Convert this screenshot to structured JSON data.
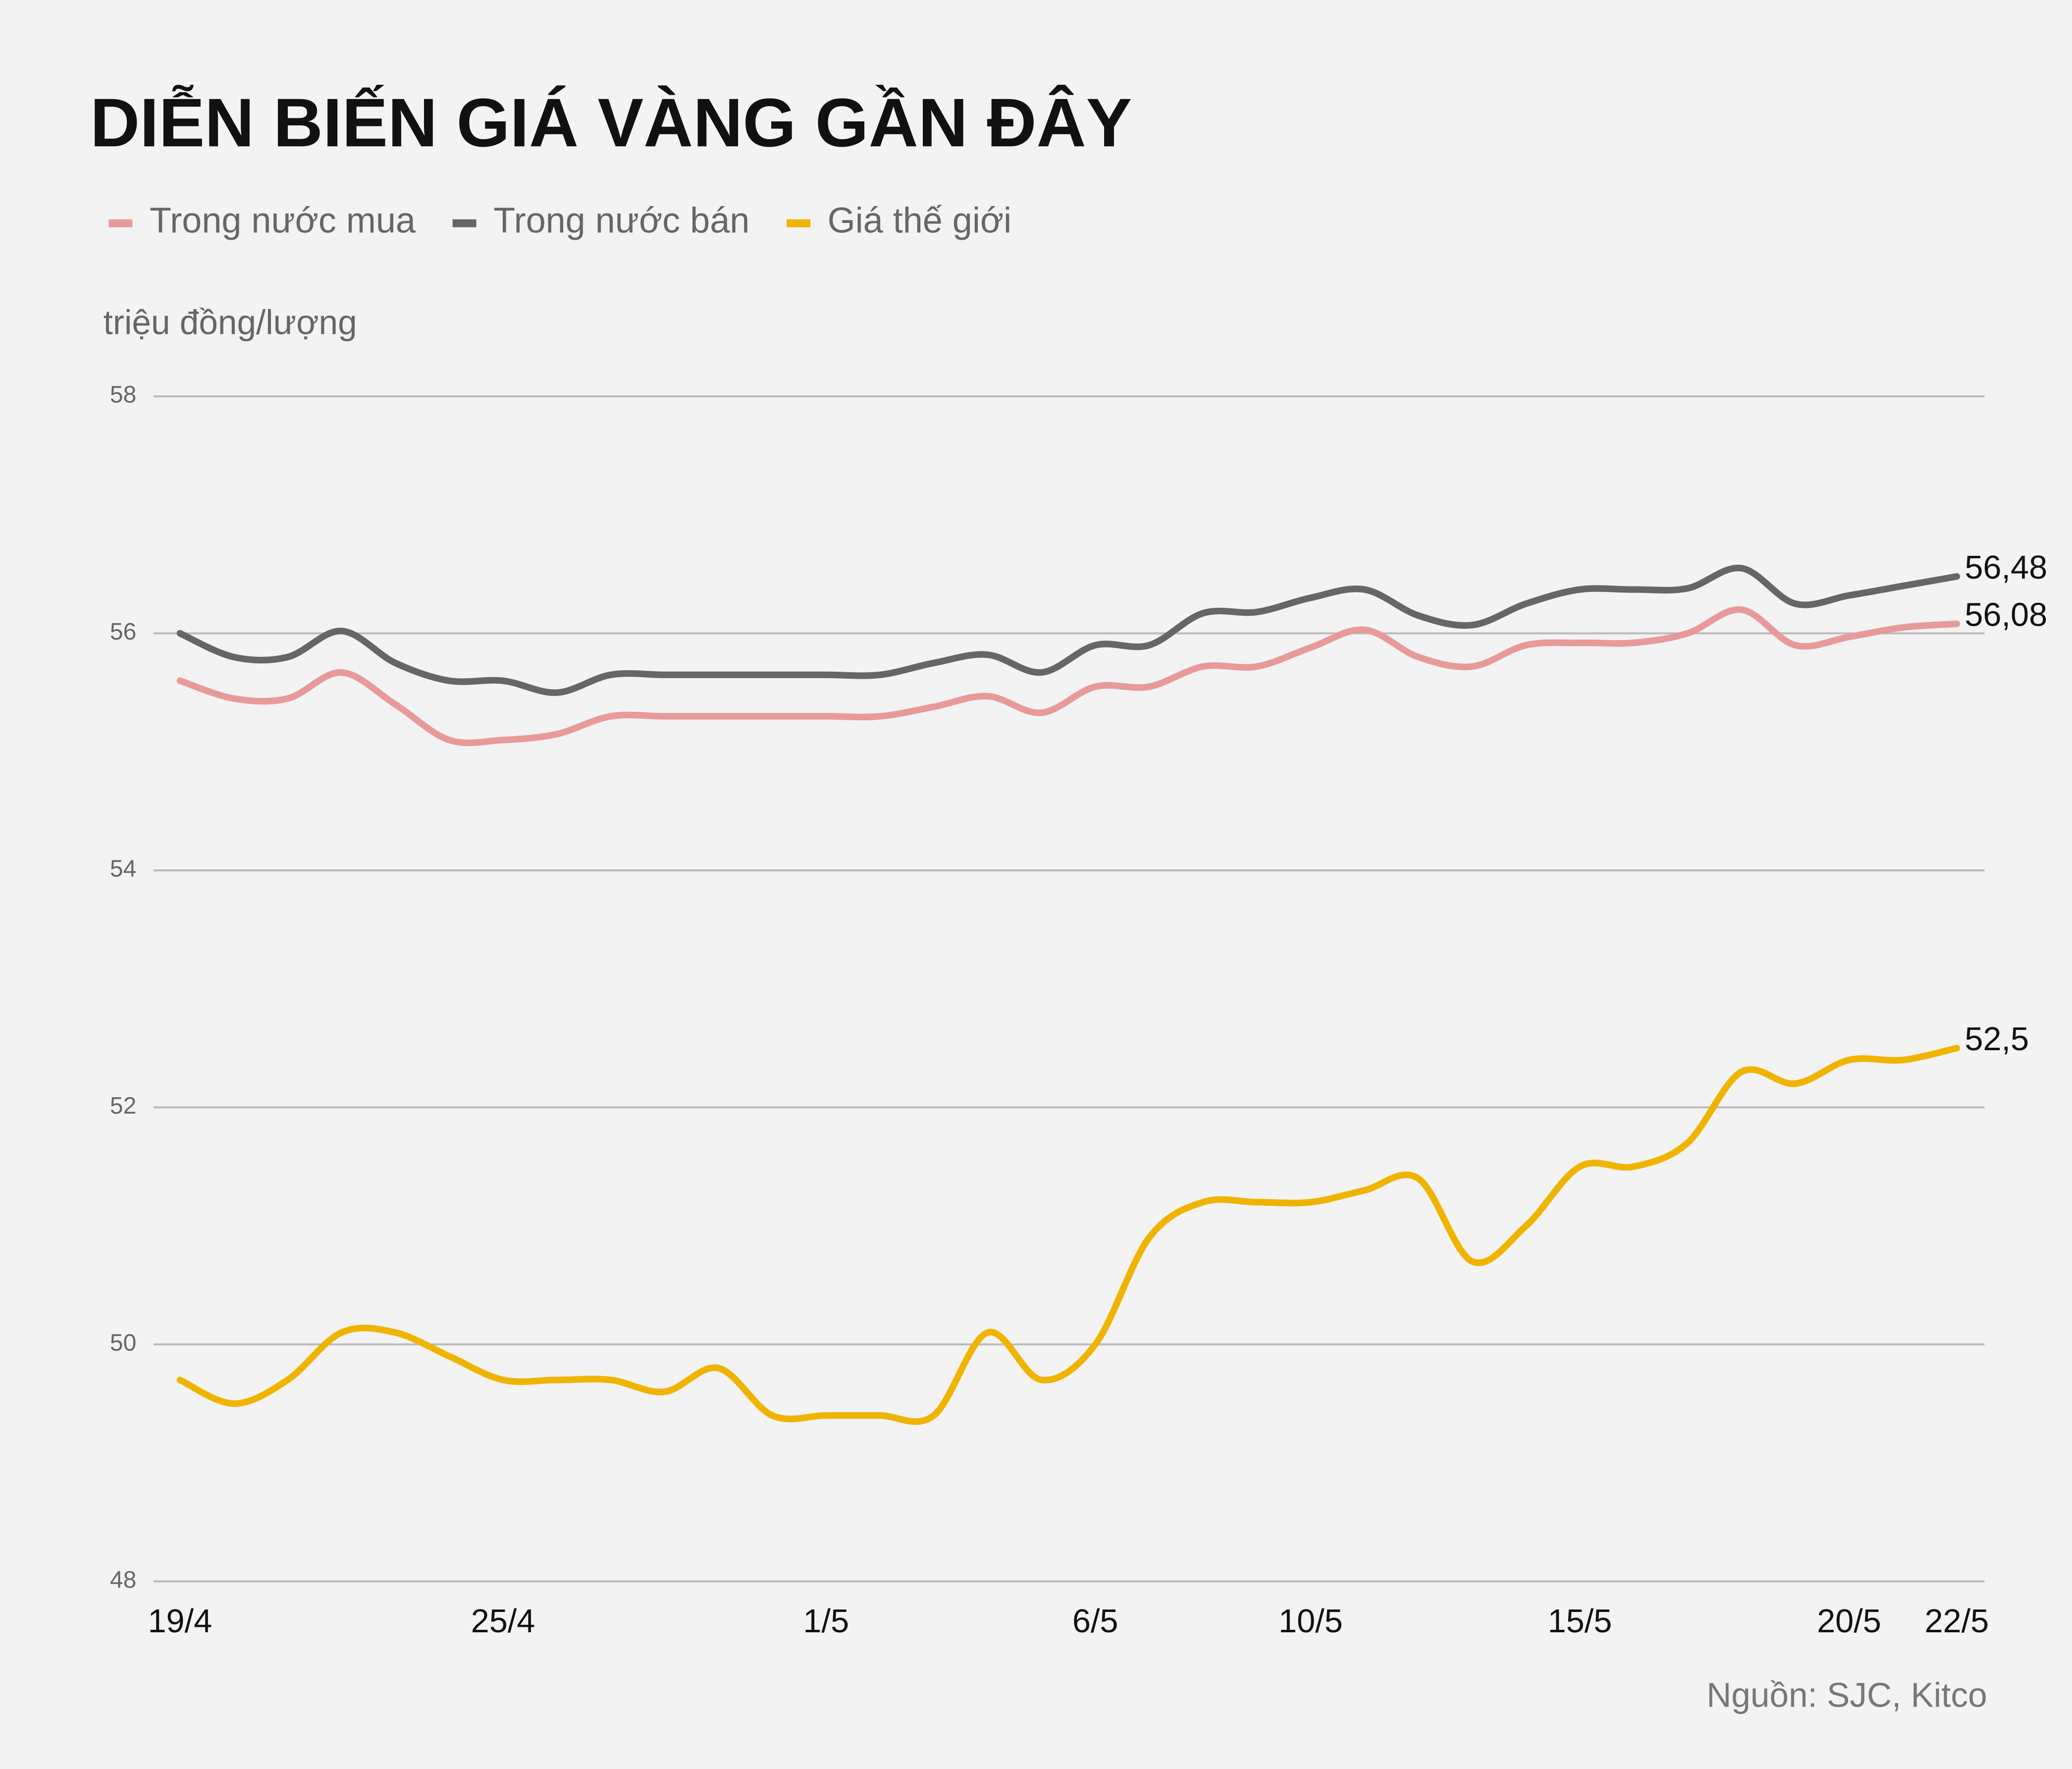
{
  "chart_data": {
    "type": "line",
    "title": "DIỄN BIẾN GIÁ VÀNG GẦN ĐÂY",
    "y_label": "triệu đồng/lượng",
    "source": "Nguồn: SJC, Kitco",
    "categories": [
      "19/4",
      null,
      null,
      null,
      null,
      null,
      "25/4",
      null,
      null,
      null,
      null,
      null,
      "1/5",
      null,
      null,
      null,
      null,
      "6/5",
      null,
      null,
      null,
      "10/5",
      null,
      null,
      null,
      null,
      "15/5",
      null,
      null,
      null,
      null,
      "20/5",
      null,
      "22/5"
    ],
    "series": [
      {
        "name": "Trong nước mua",
        "color": "#e89a9a",
        "values": [
          55.6,
          55.45,
          55.45,
          55.67,
          55.4,
          55.1,
          55.1,
          55.15,
          55.3,
          55.3,
          55.3,
          55.3,
          55.3,
          55.3,
          55.38,
          55.47,
          55.33,
          55.55,
          55.55,
          55.72,
          55.72,
          55.88,
          56.03,
          55.8,
          55.72,
          55.9,
          55.92,
          55.92,
          56.0,
          56.2,
          55.9,
          55.97,
          56.05,
          56.08
        ],
        "value_labels": [
          null,
          null,
          null,
          null,
          null,
          null,
          null,
          null,
          null,
          null,
          null,
          null,
          null,
          null,
          null,
          null,
          null,
          null,
          null,
          null,
          null,
          null,
          null,
          null,
          null,
          null,
          null,
          null,
          null,
          null,
          null,
          null,
          null,
          "56,08"
        ]
      },
      {
        "name": "Trong nước bán",
        "color": "#666666",
        "values": [
          56.0,
          55.8,
          55.8,
          56.02,
          55.75,
          55.6,
          55.6,
          55.5,
          55.65,
          55.65,
          55.65,
          55.65,
          55.65,
          55.65,
          55.75,
          55.82,
          55.67,
          55.9,
          55.9,
          56.17,
          56.18,
          56.3,
          56.37,
          56.15,
          56.07,
          56.25,
          56.37,
          56.37,
          56.38,
          56.55,
          56.25,
          56.32,
          56.4,
          56.48
        ],
        "value_labels": [
          null,
          null,
          null,
          null,
          null,
          null,
          null,
          null,
          null,
          null,
          null,
          null,
          null,
          null,
          null,
          null,
          null,
          null,
          null,
          null,
          null,
          null,
          null,
          null,
          null,
          null,
          null,
          null,
          null,
          null,
          null,
          null,
          null,
          "56,48"
        ]
      },
      {
        "name": "Giá thế giới",
        "color": "#f0b400",
        "values": [
          49.7,
          49.5,
          49.7,
          50.1,
          50.1,
          49.9,
          49.7,
          49.7,
          49.7,
          49.6,
          49.8,
          49.4,
          49.4,
          49.4,
          49.4,
          50.1,
          49.7,
          50.0,
          50.9,
          51.2,
          51.2,
          51.2,
          51.3,
          51.4,
          50.7,
          51.0,
          51.5,
          51.5,
          51.7,
          52.3,
          52.2,
          52.4,
          52.4,
          52.5
        ],
        "value_labels": [
          null,
          null,
          null,
          null,
          null,
          null,
          null,
          null,
          null,
          null,
          null,
          null,
          null,
          null,
          null,
          null,
          null,
          null,
          null,
          null,
          null,
          null,
          null,
          null,
          null,
          null,
          null,
          null,
          null,
          null,
          null,
          null,
          null,
          "52,5"
        ]
      }
    ],
    "ylim": [
      48,
      58
    ],
    "yticks": [
      48,
      50,
      52,
      54,
      56,
      58
    ],
    "grid": true
  }
}
